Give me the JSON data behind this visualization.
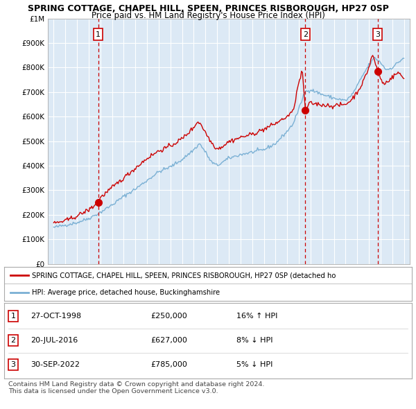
{
  "title1": "SPRING COTTAGE, CHAPEL HILL, SPEEN, PRINCES RISBOROUGH, HP27 0SP",
  "title2": "Price paid vs. HM Land Registry's House Price Index (HPI)",
  "bg_color": "#dce9f5",
  "red_line_color": "#cc0000",
  "blue_line_color": "#7ab0d4",
  "grid_color": "#ffffff",
  "vline_dates": [
    1998.82,
    2016.55,
    2022.75
  ],
  "sale_points": [
    {
      "date_num": 1998.82,
      "price": 250000
    },
    {
      "date_num": 2016.55,
      "price": 627000
    },
    {
      "date_num": 2022.75,
      "price": 785000
    }
  ],
  "box_labels": [
    "1",
    "2",
    "3"
  ],
  "legend_line1": "SPRING COTTAGE, CHAPEL HILL, SPEEN, PRINCES RISBOROUGH, HP27 0SP (detached ho",
  "legend_line2": "HPI: Average price, detached house, Buckinghamshire",
  "table_data": [
    {
      "num": "1",
      "date": "27-OCT-1998",
      "price": "£250,000",
      "hpi": "16% ↑ HPI"
    },
    {
      "num": "2",
      "date": "20-JUL-2016",
      "price": "£627,000",
      "hpi": "8% ↓ HPI"
    },
    {
      "num": "3",
      "date": "30-SEP-2022",
      "price": "£785,000",
      "hpi": "5% ↓ HPI"
    }
  ],
  "footer": "Contains HM Land Registry data © Crown copyright and database right 2024.\nThis data is licensed under the Open Government Licence v3.0.",
  "ylim": [
    0,
    1000000
  ],
  "xlim": [
    1994.5,
    2025.5
  ],
  "yticks": [
    0,
    100000,
    200000,
    300000,
    400000,
    500000,
    600000,
    700000,
    800000,
    900000,
    1000000
  ],
  "ytick_labels": [
    "£0",
    "£100K",
    "£200K",
    "£300K",
    "£400K",
    "£500K",
    "£600K",
    "£700K",
    "£800K",
    "£900K",
    "£1M"
  ],
  "xticks": [
    1995,
    1996,
    1997,
    1998,
    1999,
    2000,
    2001,
    2002,
    2003,
    2004,
    2005,
    2006,
    2007,
    2008,
    2009,
    2010,
    2011,
    2012,
    2013,
    2014,
    2015,
    2016,
    2017,
    2018,
    2019,
    2020,
    2021,
    2022,
    2023,
    2024,
    2025
  ]
}
